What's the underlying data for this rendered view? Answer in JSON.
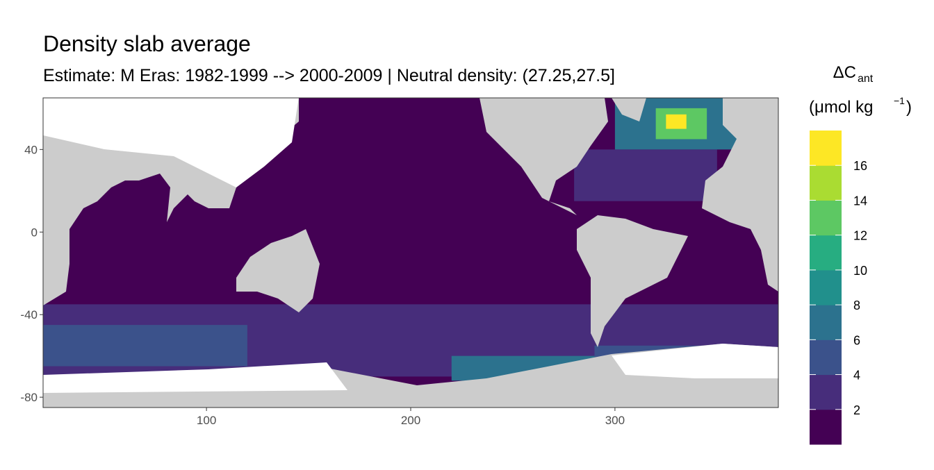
{
  "chart_data": {
    "type": "raster",
    "title": "Density slab average",
    "subtitle": "Estimate: M Eras: 1982-1999 --> 2000-2009 | Neutral density: (27.25,27.5]",
    "xlim": [
      20,
      380
    ],
    "ylim": [
      -85,
      65
    ],
    "xticks": [
      100,
      200,
      300
    ],
    "yticks": [
      40,
      0,
      -40,
      -80
    ],
    "cells": [
      {
        "lon": [
          20,
          380
        ],
        "lat": [
          -85,
          65
        ],
        "value": 1
      },
      {
        "lon": [
          20,
          380
        ],
        "lat": [
          -70,
          -35
        ],
        "value": 3
      },
      {
        "lon": [
          20,
          120
        ],
        "lat": [
          -65,
          -45
        ],
        "value": 5
      },
      {
        "lon": [
          220,
          300
        ],
        "lat": [
          -72,
          -60
        ],
        "value": 6
      },
      {
        "lon": [
          290,
          350
        ],
        "lat": [
          -70,
          -55
        ],
        "value": 5
      },
      {
        "lon": [
          280,
          350
        ],
        "lat": [
          15,
          40
        ],
        "value": 3
      },
      {
        "lon": [
          300,
          370
        ],
        "lat": [
          40,
          65
        ],
        "value": 7
      },
      {
        "lon": [
          320,
          345
        ],
        "lat": [
          45,
          60
        ],
        "value": 13
      },
      {
        "lon": [
          325,
          335
        ],
        "lat": [
          50,
          57
        ],
        "value": 17
      }
    ],
    "legend": {
      "title": "ΔC",
      "title_sub": "ant",
      "unit": "(μmol kg",
      "unit_sup": "−1",
      "unit_end": ")",
      "bins": [
        0,
        2,
        4,
        6,
        8,
        10,
        12,
        14,
        16,
        18
      ],
      "colors": [
        "#440154",
        "#472d7b",
        "#3b528b",
        "#2c728e",
        "#21908c",
        "#27ad81",
        "#5dc863",
        "#aadc32",
        "#fde725"
      ],
      "ticks": [
        2,
        4,
        6,
        8,
        10,
        12,
        14,
        16
      ]
    }
  }
}
